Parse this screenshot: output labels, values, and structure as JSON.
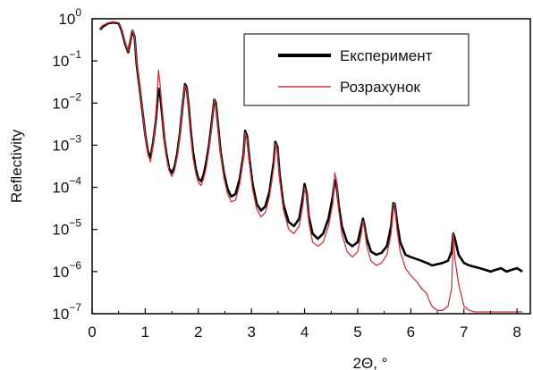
{
  "chart_data": {
    "type": "line",
    "title": "",
    "xlabel": "2Θ, °",
    "ylabel": "Reflectivity",
    "xlim": [
      0,
      8.25
    ],
    "ylim": [
      1e-07,
      1
    ],
    "yscale": "log",
    "grid": false,
    "legend_position": "top-right",
    "x_ticks": [
      {
        "value": 0,
        "label": "0"
      },
      {
        "value": 1,
        "label": "1"
      },
      {
        "value": 2,
        "label": "2"
      },
      {
        "value": 3,
        "label": "3"
      },
      {
        "value": 4,
        "label": "4"
      },
      {
        "value": 5,
        "label": "5"
      },
      {
        "value": 6,
        "label": "6"
      },
      {
        "value": 7,
        "label": "7"
      },
      {
        "value": 8,
        "label": "8"
      }
    ],
    "y_ticks": [
      {
        "value": 1,
        "base": "10",
        "exp": "0"
      },
      {
        "value": 0.1,
        "base": "10",
        "exp": "−1"
      },
      {
        "value": 0.01,
        "base": "10",
        "exp": "−2"
      },
      {
        "value": 0.001,
        "base": "10",
        "exp": "−3"
      },
      {
        "value": 0.0001,
        "base": "10",
        "exp": "−4"
      },
      {
        "value": 1e-05,
        "base": "10",
        "exp": "−5"
      },
      {
        "value": 1e-06,
        "base": "10",
        "exp": "−6"
      },
      {
        "value": 1e-07,
        "base": "10",
        "exp": "−7"
      }
    ],
    "series": [
      {
        "name": "Експеримент",
        "color": "#000000",
        "x": [
          0.15,
          0.2,
          0.3,
          0.4,
          0.5,
          0.55,
          0.62,
          0.68,
          0.72,
          0.76,
          0.8,
          0.84,
          0.9,
          0.95,
          1.0,
          1.05,
          1.1,
          1.15,
          1.2,
          1.25,
          1.28,
          1.32,
          1.36,
          1.4,
          1.45,
          1.5,
          1.55,
          1.6,
          1.65,
          1.7,
          1.75,
          1.78,
          1.82,
          1.86,
          1.9,
          1.95,
          2.0,
          2.05,
          2.1,
          2.15,
          2.2,
          2.25,
          2.3,
          2.33,
          2.37,
          2.42,
          2.48,
          2.55,
          2.62,
          2.7,
          2.78,
          2.85,
          2.88,
          2.92,
          2.96,
          3.02,
          3.1,
          3.18,
          3.26,
          3.34,
          3.42,
          3.45,
          3.49,
          3.53,
          3.6,
          3.7,
          3.8,
          3.9,
          3.97,
          4.0,
          4.04,
          4.08,
          4.15,
          4.25,
          4.35,
          4.45,
          4.53,
          4.57,
          4.6,
          4.64,
          4.7,
          4.8,
          4.9,
          5.0,
          5.07,
          5.1,
          5.13,
          5.17,
          5.25,
          5.35,
          5.45,
          5.55,
          5.63,
          5.67,
          5.7,
          5.74,
          5.8,
          5.9,
          6.0,
          6.1,
          6.2,
          6.3,
          6.35,
          6.4,
          6.5,
          6.6,
          6.7,
          6.77,
          6.8,
          6.83,
          6.9,
          7.0,
          7.1,
          7.2,
          7.3,
          7.4,
          7.5,
          7.6,
          7.7,
          7.8,
          7.9,
          8.0,
          8.1
        ],
        "y": [
          0.55,
          0.65,
          0.78,
          0.82,
          0.78,
          0.55,
          0.26,
          0.16,
          0.3,
          0.52,
          0.38,
          0.08,
          0.02,
          0.006,
          0.0018,
          0.0007,
          0.0005,
          0.0012,
          0.004,
          0.022,
          0.017,
          0.005,
          0.0014,
          0.0006,
          0.00028,
          0.00022,
          0.0003,
          0.0006,
          0.0018,
          0.008,
          0.028,
          0.024,
          0.008,
          0.002,
          0.0007,
          0.00028,
          0.00016,
          0.00014,
          0.0002,
          0.0004,
          0.001,
          0.0032,
          0.012,
          0.01,
          0.003,
          0.0007,
          0.00022,
          9e-05,
          6e-05,
          7e-05,
          0.00016,
          0.0006,
          0.0022,
          0.0016,
          0.0005,
          0.00012,
          4e-05,
          2.8e-05,
          3.5e-05,
          8e-05,
          0.0004,
          0.0012,
          0.0009,
          0.0002,
          4e-05,
          1.5e-05,
          1.2e-05,
          1.8e-05,
          6e-05,
          0.00012,
          7e-05,
          2e-05,
          8e-06,
          6e-06,
          8e-06,
          1.8e-05,
          6e-05,
          0.00015,
          0.00012,
          4e-05,
          1.2e-05,
          5e-06,
          4e-06,
          5e-06,
          1.2e-05,
          1.8e-05,
          1.2e-05,
          6e-06,
          3e-06,
          2.5e-06,
          2.8e-06,
          4e-06,
          1.2e-05,
          4.2e-05,
          4e-05,
          1.5e-05,
          5e-06,
          2.5e-06,
          2.2e-06,
          2e-06,
          1.8e-06,
          1.6e-06,
          1.5e-06,
          1.4e-06,
          1.5e-06,
          1.6e-06,
          1.8e-06,
          3e-06,
          8e-06,
          6e-06,
          2.5e-06,
          1.6e-06,
          1.4e-06,
          1.3e-06,
          1.2e-06,
          1.1e-06,
          1e-06,
          1.1e-06,
          1.2e-06,
          1e-06,
          1.1e-06,
          1.2e-06,
          1e-06
        ]
      },
      {
        "name": "Розрахунок",
        "color": "#c9363e",
        "x": [
          0.15,
          0.2,
          0.3,
          0.4,
          0.5,
          0.55,
          0.62,
          0.68,
          0.72,
          0.76,
          0.8,
          0.84,
          0.9,
          0.95,
          1.0,
          1.05,
          1.1,
          1.15,
          1.2,
          1.25,
          1.28,
          1.32,
          1.36,
          1.4,
          1.45,
          1.5,
          1.55,
          1.6,
          1.65,
          1.7,
          1.75,
          1.78,
          1.82,
          1.86,
          1.9,
          1.95,
          2.0,
          2.05,
          2.1,
          2.15,
          2.2,
          2.25,
          2.3,
          2.33,
          2.37,
          2.42,
          2.48,
          2.55,
          2.62,
          2.7,
          2.78,
          2.85,
          2.88,
          2.92,
          2.96,
          3.02,
          3.1,
          3.18,
          3.26,
          3.34,
          3.42,
          3.45,
          3.49,
          3.53,
          3.6,
          3.7,
          3.8,
          3.9,
          3.97,
          4.0,
          4.04,
          4.08,
          4.15,
          4.25,
          4.35,
          4.45,
          4.53,
          4.57,
          4.6,
          4.64,
          4.7,
          4.8,
          4.9,
          5.0,
          5.07,
          5.1,
          5.13,
          5.17,
          5.25,
          5.35,
          5.45,
          5.55,
          5.63,
          5.67,
          5.7,
          5.74,
          5.8,
          5.9,
          6.0,
          6.1,
          6.2,
          6.3,
          6.35,
          6.4,
          6.5,
          6.6,
          6.7,
          6.77,
          6.8,
          6.83,
          6.9,
          7.0,
          7.1,
          7.2,
          7.3,
          7.4,
          7.5,
          7.6,
          7.7,
          7.8,
          7.9,
          8.0,
          8.1
        ],
        "y": [
          0.6,
          0.7,
          0.8,
          0.85,
          0.8,
          0.58,
          0.28,
          0.17,
          0.32,
          0.55,
          0.4,
          0.09,
          0.022,
          0.006,
          0.0017,
          0.0006,
          0.0004,
          0.0011,
          0.005,
          0.06,
          0.028,
          0.006,
          0.0014,
          0.0005,
          0.00025,
          0.00018,
          0.00025,
          0.0005,
          0.0016,
          0.008,
          0.026,
          0.022,
          0.007,
          0.0016,
          0.0005,
          0.00022,
          0.00013,
          0.00011,
          0.00016,
          0.0003,
          0.0008,
          0.0028,
          0.012,
          0.009,
          0.0025,
          0.0006,
          0.00017,
          7e-05,
          4.5e-05,
          5e-05,
          0.00012,
          0.0005,
          0.002,
          0.0014,
          0.0004,
          9e-05,
          3e-05,
          2e-05,
          2.5e-05,
          6e-05,
          0.0003,
          0.0011,
          0.0008,
          0.00015,
          3e-05,
          1e-05,
          8e-06,
          1.2e-05,
          4e-05,
          0.0001,
          6e-05,
          1.5e-05,
          5e-06,
          4e-06,
          5e-06,
          1.2e-05,
          4e-05,
          0.00022,
          0.00015,
          3e-05,
          8e-06,
          3e-06,
          2.2e-06,
          3e-06,
          8e-06,
          1.6e-05,
          1e-05,
          4e-06,
          1.8e-06,
          1.4e-06,
          1.6e-06,
          2.5e-06,
          8e-06,
          4e-05,
          4e-05,
          1e-05,
          3e-06,
          1.2e-06,
          8e-07,
          6e-07,
          4e-07,
          3e-07,
          2e-07,
          1.5e-07,
          1.2e-07,
          1.2e-07,
          1.5e-07,
          4e-07,
          8e-06,
          2e-06,
          5e-07,
          1.5e-07,
          1.2e-07,
          1.1e-07,
          1.1e-07,
          1.1e-07,
          1.1e-07,
          1.1e-07,
          1.1e-07,
          1.1e-07,
          1.1e-07,
          1.1e-07,
          1.1e-07
        ]
      }
    ]
  }
}
